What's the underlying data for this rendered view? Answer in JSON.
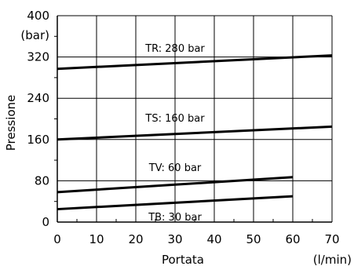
{
  "chart_data": {
    "type": "line",
    "title": "",
    "xlabel": "Portata",
    "xunit": "(l/min)",
    "ylabel": "Pressione",
    "yunit": "(bar)",
    "xlim": [
      0,
      70
    ],
    "ylim": [
      0,
      400
    ],
    "xticks": [
      0,
      10,
      20,
      30,
      40,
      50,
      60,
      70
    ],
    "yticks": [
      0,
      80,
      160,
      240,
      320,
      400
    ],
    "grid": true,
    "legend": "none",
    "colors": {
      "line": "#000000",
      "grid": "#000000",
      "background": "#ffffff"
    },
    "series": [
      {
        "name": "TR: 280 bar",
        "x": [
          0,
          70
        ],
        "y": [
          297,
          323
        ]
      },
      {
        "name": "TS: 160 bar",
        "x": [
          0,
          70
        ],
        "y": [
          160,
          185
        ]
      },
      {
        "name": "TV: 60 bar",
        "x": [
          0,
          60
        ],
        "y": [
          58,
          87
        ]
      },
      {
        "name": "TB: 30 bar",
        "x": [
          0,
          60
        ],
        "y": [
          25,
          50
        ]
      }
    ]
  }
}
